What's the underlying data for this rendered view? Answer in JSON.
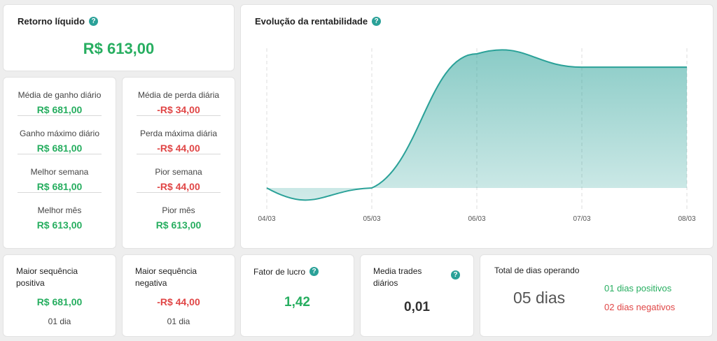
{
  "retorno": {
    "title": "Retorno líquido",
    "value": "R$ 613,00"
  },
  "gains": [
    {
      "label": "Média de ganho diário",
      "value": "R$ 681,00"
    },
    {
      "label": "Ganho máximo diário",
      "value": "R$ 681,00"
    },
    {
      "label": "Melhor semana",
      "value": "R$ 681,00"
    },
    {
      "label": "Melhor mês",
      "value": "R$ 613,00"
    }
  ],
  "losses": [
    {
      "label": "Média de perda diária",
      "value": "-R$ 34,00"
    },
    {
      "label": "Perda máxima diária",
      "value": "-R$ 44,00"
    },
    {
      "label": "Pior semana",
      "value": "-R$ 44,00"
    },
    {
      "label": "Pior mês",
      "value": "R$ 613,00"
    }
  ],
  "chart_data": {
    "type": "area",
    "title": "Evolução da rentabilidade",
    "categories": [
      "04/03",
      "05/03",
      "06/03",
      "07/03",
      "08/03"
    ],
    "series": [
      {
        "values": [
          0,
          0,
          681,
          613,
          613
        ]
      }
    ],
    "grid": true,
    "color": "#2aa198"
  },
  "seq_pos": {
    "title": "Maior sequência positiva",
    "value": "R$ 681,00",
    "sub": "01 dia"
  },
  "seq_neg": {
    "title": "Maior sequência negativa",
    "value": "-R$ 44,00",
    "sub": "01 dia"
  },
  "fator": {
    "title": "Fator de lucro",
    "value": "1,42"
  },
  "media_trades": {
    "title": "Media trades diários",
    "value": "0,01"
  },
  "dias": {
    "title": "Total de dias operando",
    "value": "05 dias",
    "positive": "01 dias positivos",
    "negative": "02 dias negativos"
  }
}
